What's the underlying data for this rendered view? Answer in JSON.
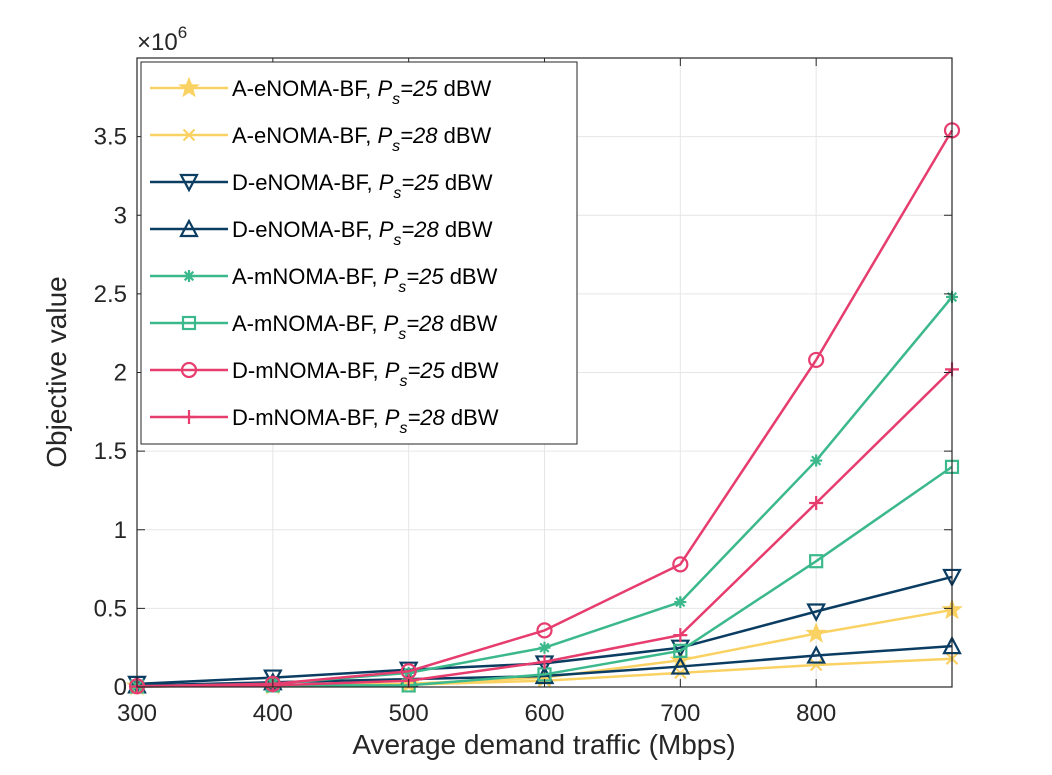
{
  "chart_data": {
    "type": "line",
    "xlabel": "Average demand traffic (Mbps)",
    "ylabel": "Objective value",
    "y_multiplier_label": "×10",
    "y_multiplier_exponent": "6",
    "xlim": [
      300,
      900
    ],
    "ylim": [
      0,
      4
    ],
    "x": [
      300,
      400,
      500,
      600,
      700,
      800,
      900
    ],
    "x_ticks": [
      300,
      400,
      500,
      600,
      700,
      800
    ],
    "x_tick_labels": [
      "300",
      "400",
      "500",
      "600",
      "700",
      "800"
    ],
    "y_ticks": [
      0,
      0.5,
      1,
      1.5,
      2,
      2.5,
      3,
      3.5
    ],
    "y_tick_labels": [
      "0",
      "0.5",
      "1",
      "1.5",
      "2",
      "2.5",
      "3",
      "3.5"
    ],
    "grid": true,
    "legend_position": "top-left",
    "series": [
      {
        "name": "A-eNOMA-BF",
        "label_prefix": "A-eNOMA-BF, ",
        "p_symbol": "P",
        "p_sub": "s",
        "p_value": "=25",
        "unit": " dBW",
        "color": "#fad264",
        "marker": "star",
        "values": [
          0.005,
          0.01,
          0.02,
          0.06,
          0.17,
          0.34,
          0.49
        ]
      },
      {
        "name": "A-eNOMA-BF",
        "label_prefix": "A-eNOMA-BF, ",
        "p_symbol": "P",
        "p_sub": "s",
        "p_value": "=28",
        "unit": " dBW",
        "color": "#fad264",
        "marker": "x",
        "values": [
          0.003,
          0.008,
          0.015,
          0.04,
          0.09,
          0.14,
          0.18
        ]
      },
      {
        "name": "D-eNOMA-BF",
        "label_prefix": "D-eNOMA-BF, ",
        "p_symbol": "P",
        "p_sub": "s",
        "p_value": "=25",
        "unit": " dBW",
        "color": "#0b3d62",
        "marker": "triangle-down",
        "values": [
          0.02,
          0.06,
          0.11,
          0.15,
          0.25,
          0.48,
          0.7
        ]
      },
      {
        "name": "D-eNOMA-BF",
        "label_prefix": "D-eNOMA-BF, ",
        "p_symbol": "P",
        "p_sub": "s",
        "p_value": "=28",
        "unit": " dBW",
        "color": "#0b3d62",
        "marker": "triangle-up",
        "values": [
          0.01,
          0.03,
          0.05,
          0.07,
          0.13,
          0.2,
          0.26
        ]
      },
      {
        "name": "A-mNOMA-BF",
        "label_prefix": "A-mNOMA-BF, ",
        "p_symbol": "P",
        "p_sub": "s",
        "p_value": "=25",
        "unit": " dBW",
        "color": "#3cb98c",
        "marker": "asterisk",
        "values": [
          0.005,
          0.02,
          0.09,
          0.25,
          0.54,
          1.44,
          2.48
        ]
      },
      {
        "name": "A-mNOMA-BF",
        "label_prefix": "A-mNOMA-BF, ",
        "p_symbol": "P",
        "p_sub": "s",
        "p_value": "=28",
        "unit": " dBW",
        "color": "#3cb98c",
        "marker": "square",
        "values": [
          0.003,
          0.01,
          0.01,
          0.08,
          0.23,
          0.8,
          1.4
        ]
      },
      {
        "name": "D-mNOMA-BF",
        "label_prefix": "D-mNOMA-BF, ",
        "p_symbol": "P",
        "p_sub": "s",
        "p_value": "=25",
        "unit": " dBW",
        "color": "#e63c6e",
        "marker": "circle",
        "values": [
          0.005,
          0.02,
          0.1,
          0.36,
          0.78,
          2.08,
          3.54
        ]
      },
      {
        "name": "D-mNOMA-BF",
        "label_prefix": "D-mNOMA-BF, ",
        "p_symbol": "P",
        "p_sub": "s",
        "p_value": "=28",
        "unit": " dBW",
        "color": "#e63c6e",
        "marker": "plus",
        "values": [
          0.003,
          0.01,
          0.04,
          0.16,
          0.33,
          1.17,
          2.02
        ]
      }
    ]
  }
}
